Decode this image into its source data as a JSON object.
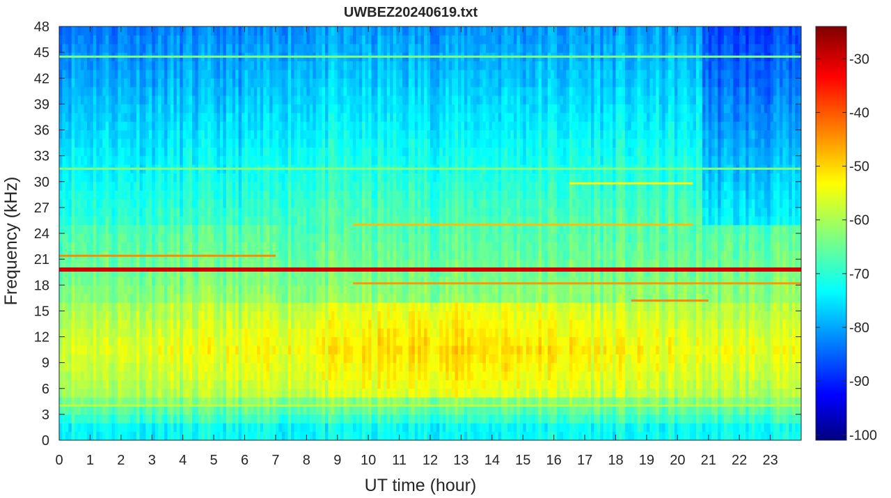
{
  "chart_data": {
    "type": "heatmap",
    "title": "UWBEZ20240619.txt",
    "xlabel": "UT time (hour)",
    "ylabel": "Frequency (kHz)",
    "xlim": [
      0,
      24
    ],
    "ylim": [
      0,
      48
    ],
    "x_ticks": [
      0,
      1,
      2,
      3,
      4,
      5,
      6,
      7,
      8,
      9,
      10,
      11,
      12,
      13,
      14,
      15,
      16,
      17,
      18,
      19,
      20,
      21,
      22,
      23
    ],
    "y_ticks": [
      0,
      3,
      6,
      9,
      12,
      15,
      18,
      21,
      24,
      27,
      30,
      33,
      36,
      39,
      42,
      45,
      48
    ],
    "colorbar": {
      "colormap": "jet",
      "clim": [
        -101,
        -24
      ],
      "ticks": [
        -100,
        -90,
        -80,
        -70,
        -60,
        -50,
        -40,
        -30
      ]
    },
    "bands": [
      {
        "freq_khz": 19.8,
        "level_db": -30,
        "start_hour": 0,
        "end_hour": 24
      },
      {
        "freq_khz": 21.4,
        "level_db": -44,
        "start_hour": 0,
        "end_hour": 7
      },
      {
        "freq_khz": 18.2,
        "level_db": -45,
        "start_hour": 9.5,
        "end_hour": 24
      },
      {
        "freq_khz": 25.0,
        "level_db": -48,
        "start_hour": 9.5,
        "end_hour": 20.5
      },
      {
        "freq_khz": 44.5,
        "level_db": -62,
        "start_hour": 0,
        "end_hour": 24
      },
      {
        "freq_khz": 4.0,
        "level_db": -58,
        "start_hour": 0,
        "end_hour": 24
      },
      {
        "freq_khz": 31.5,
        "level_db": -62,
        "start_hour": 0,
        "end_hour": 24
      },
      {
        "freq_khz": 29.8,
        "level_db": -52,
        "start_hour": 16.5,
        "end_hour": 20.5
      },
      {
        "freq_khz": 16.2,
        "level_db": -44,
        "start_hour": 18.5,
        "end_hour": 21
      }
    ]
  }
}
